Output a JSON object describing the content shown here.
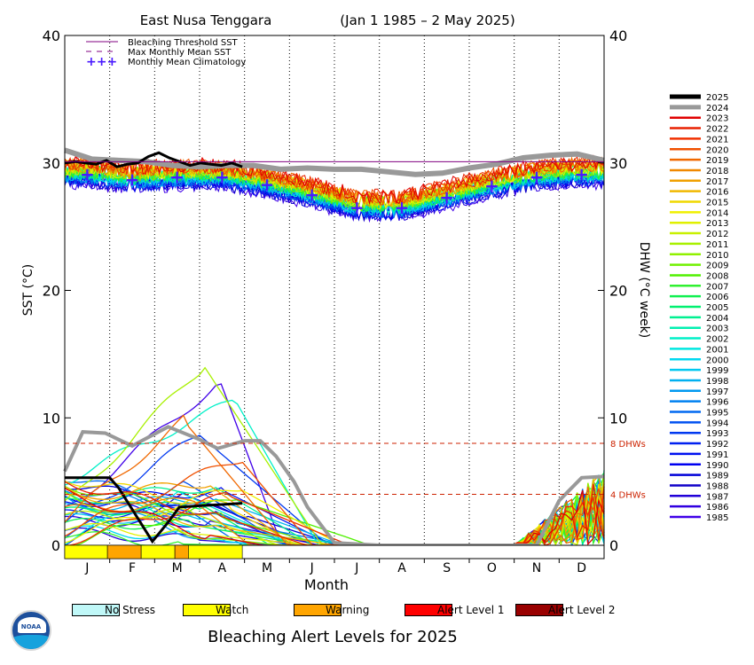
{
  "chart_data": {
    "type": "line",
    "title": "East Nusa Tenggara",
    "date_range": "(Jan 1 1985 – 2 May 2025)",
    "xlabel": "Month",
    "ylabel": "SST (°C)",
    "y2label": "DHW (°C week)",
    "ylim": [
      0,
      40
    ],
    "y_ticks": [
      0,
      10,
      20,
      30,
      40
    ],
    "months": [
      "J",
      "F",
      "M",
      "A",
      "M",
      "J",
      "J",
      "A",
      "S",
      "O",
      "N",
      "D"
    ],
    "bleaching_threshold_sst": 30.1,
    "dhw_reference_lines": [
      {
        "value": 8,
        "label": "8 DHWs"
      },
      {
        "value": 4,
        "label": "4 DHWs"
      }
    ],
    "top_legend": [
      {
        "label": "Bleaching Threshold SST",
        "style": "solid",
        "color": "#800080"
      },
      {
        "label": "Max Monthly Mean SST",
        "style": "dashed",
        "color": "#800080"
      },
      {
        "label": "Monthly Mean Climatology",
        "style": "plus",
        "color": "#4a1aff"
      }
    ],
    "monthly_mean_climatology": [
      29.1,
      28.7,
      28.9,
      28.9,
      28.3,
      27.5,
      26.5,
      26.5,
      27.3,
      28.2,
      28.9,
      29.1
    ],
    "series_2025_sst": [
      30.0,
      30.1,
      30.0,
      29.9,
      30.2,
      29.7,
      29.9,
      30.0,
      30.5,
      30.8,
      30.4,
      30.1,
      29.8,
      30.0,
      29.9,
      29.8,
      30.0,
      29.7
    ],
    "series_2024_sst": [
      31.0,
      30.3,
      30.2,
      30.1,
      29.8,
      29.7,
      29.8,
      29.8,
      29.5,
      29.6,
      29.5,
      29.5,
      29.3,
      29.1,
      29.2,
      29.6,
      29.9,
      30.4,
      30.6,
      30.7,
      30.2
    ],
    "series_2025_dhw": [
      5.3,
      5.3,
      5.3,
      4.5,
      0.3,
      1.8,
      3.0,
      3.1,
      3.2,
      3.3
    ],
    "series_2024_dhw": [
      5.8,
      8.9,
      8.8,
      7.8,
      9.3,
      8.3,
      7.6,
      8.2,
      8.2,
      7.0,
      5.0,
      3.0,
      0.2,
      0.0,
      0.0,
      0.0,
      3.5,
      5.3,
      5.4
    ],
    "years": [
      "2025",
      "2024",
      "2023",
      "2022",
      "2021",
      "2020",
      "2019",
      "2018",
      "2017",
      "2016",
      "2015",
      "2014",
      "2013",
      "2012",
      "2011",
      "2010",
      "2009",
      "2008",
      "2007",
      "2006",
      "2005",
      "2004",
      "2003",
      "2002",
      "2001",
      "2000",
      "1999",
      "1998",
      "1997",
      "1996",
      "1995",
      "1994",
      "1993",
      "1992",
      "1991",
      "1990",
      "1989",
      "1988",
      "1987",
      "1986",
      "1985"
    ],
    "year_colors": [
      "#000000",
      "#999999",
      "#e00000",
      "#e82000",
      "#f03000",
      "#f05000",
      "#f06800",
      "#f08800",
      "#f0a000",
      "#f0b800",
      "#f0d800",
      "#f0f000",
      "#e0f000",
      "#c8f000",
      "#a8f000",
      "#90f000",
      "#70f000",
      "#50f000",
      "#30f030",
      "#10f050",
      "#00f070",
      "#00f090",
      "#00f0b0",
      "#00f0c8",
      "#00e8e0",
      "#00d8f0",
      "#00c8f0",
      "#00b0f0",
      "#0098f0",
      "#0080f0",
      "#0068f0",
      "#0050f0",
      "#0038f0",
      "#0020f0",
      "#0010f0",
      "#0000f0",
      "#0000d8",
      "#1000c8",
      "#2000d8",
      "#3000e0",
      "#4000e8"
    ],
    "bleaching_alert_strip": [
      {
        "level": "Watch",
        "from": 0.0,
        "to": 0.95,
        "color": "#ffff00"
      },
      {
        "level": "Warning",
        "from": 0.95,
        "to": 1.7,
        "color": "#ffa500"
      },
      {
        "level": "Watch",
        "from": 1.7,
        "to": 2.45,
        "color": "#ffff00"
      },
      {
        "level": "Warning",
        "from": 2.45,
        "to": 2.75,
        "color": "#ffa500"
      },
      {
        "level": "Watch",
        "from": 2.75,
        "to": 3.95,
        "color": "#ffff00"
      }
    ]
  },
  "alert_key": [
    {
      "label": "No Stress",
      "color": "#c0f8f8"
    },
    {
      "label": "Watch",
      "color": "#ffff00"
    },
    {
      "label": "Warning",
      "color": "#ffa500"
    },
    {
      "label": "Alert Level 1",
      "color": "#ff0000"
    },
    {
      "label": "Alert Level 2",
      "color": "#990000"
    }
  ],
  "footer_title": "Bleaching Alert Levels for 2025",
  "logo_text": "NOAA",
  "colors": {
    "threshold": "#800080",
    "climatology": "#4a1aff",
    "dhw_ref": "#cc2200"
  }
}
